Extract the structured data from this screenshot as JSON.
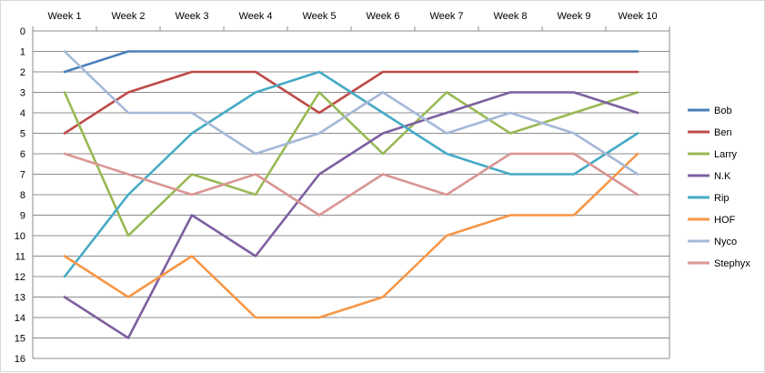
{
  "chart_data": {
    "type": "line",
    "title": "",
    "xlabel": "",
    "ylabel": "",
    "x": [
      "Week 1",
      "Week 2",
      "Week 3",
      "Week 4",
      "Week 5",
      "Week 6",
      "Week 7",
      "Week 8",
      "Week 9",
      "Week 10"
    ],
    "yticks": [
      "0",
      "1",
      "2",
      "3",
      "4",
      "5",
      "6",
      "7",
      "8",
      "9",
      "10",
      "11",
      "12",
      "13",
      "14",
      "15",
      "16"
    ],
    "ylim": [
      0,
      16
    ],
    "y_reversed": true,
    "grid": "horizontal",
    "legend_position": "right",
    "series": [
      {
        "name": "Bob",
        "color": "#4a7ebb",
        "values": [
          2,
          1,
          1,
          1,
          1,
          1,
          1,
          1,
          1,
          1
        ]
      },
      {
        "name": "Ben",
        "color": "#be4b48",
        "values": [
          5,
          3,
          2,
          2,
          4,
          2,
          2,
          2,
          2,
          2
        ]
      },
      {
        "name": "Larry",
        "color": "#98b954",
        "values": [
          3,
          10,
          7,
          8,
          3,
          6,
          3,
          5,
          4,
          3
        ]
      },
      {
        "name": "N.K",
        "color": "#7d60a0",
        "values": [
          13,
          15,
          9,
          11,
          7,
          5,
          4,
          3,
          3,
          4
        ]
      },
      {
        "name": "Rip",
        "color": "#46aac5",
        "values": [
          12,
          8,
          5,
          3,
          2,
          4,
          6,
          7,
          7,
          5
        ]
      },
      {
        "name": "HOF",
        "color": "#f79646",
        "values": [
          11,
          13,
          11,
          14,
          14,
          13,
          10,
          9,
          9,
          6
        ]
      },
      {
        "name": "Nyco",
        "color": "#a5b8d8",
        "values": [
          1,
          4,
          4,
          6,
          5,
          3,
          5,
          4,
          5,
          7
        ]
      },
      {
        "name": "Stephyx",
        "color": "#d99694",
        "values": [
          6,
          7,
          8,
          7,
          9,
          7,
          8,
          6,
          6,
          8
        ]
      }
    ]
  }
}
